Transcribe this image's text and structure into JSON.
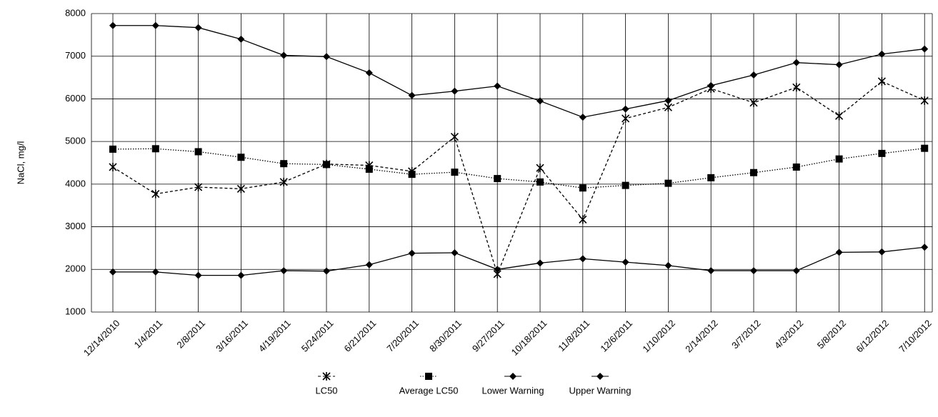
{
  "chart_data": {
    "type": "line",
    "y_label": "NaCl, mg/l",
    "categories": [
      "12/14/2010",
      "1/4/2011",
      "2/8/2011",
      "3/16/2011",
      "4/19/2011",
      "5/24/2011",
      "6/21/2011",
      "7/20/2011",
      "8/30/2011",
      "9/27/2011",
      "10/18/2011",
      "11/8/2011",
      "12/6/2011",
      "1/10/2012",
      "2/14/2012",
      "3/7/2012",
      "4/3/2012",
      "5/8/2012",
      "6/12/2012",
      "7/10/2012"
    ],
    "series": [
      {
        "name": "LC50",
        "color": "#000000",
        "marker": "x",
        "line_style": "dashed",
        "values": [
          4400,
          3770,
          3930,
          3890,
          4050,
          4470,
          4440,
          4300,
          5110,
          1890,
          4380,
          3170,
          5540,
          5800,
          6240,
          5910,
          6270,
          5600,
          6410,
          5960
        ]
      },
      {
        "name": "Average LC50",
        "color": "#000000",
        "marker": "square",
        "line_style": "dotted",
        "values": [
          4820,
          4830,
          4760,
          4630,
          4480,
          4460,
          4350,
          4230,
          4280,
          4130,
          4050,
          3910,
          3970,
          4020,
          4150,
          4270,
          4400,
          4590,
          4720,
          4840
        ]
      },
      {
        "name": "Lower Warning",
        "color": "#000000",
        "marker": "diamond",
        "line_style": "solid",
        "values": [
          1940,
          1940,
          1860,
          1860,
          1970,
          1960,
          2110,
          2380,
          2390,
          2000,
          2150,
          2250,
          2170,
          2090,
          1970,
          1970,
          1970,
          2400,
          2410,
          2520
        ]
      },
      {
        "name": "Upper Warning",
        "color": "#000000",
        "marker": "diamond",
        "line_style": "solid",
        "values": [
          7720,
          7720,
          7670,
          7400,
          7020,
          6990,
          6610,
          6080,
          6180,
          6300,
          5950,
          5570,
          5760,
          5960,
          6310,
          6560,
          6850,
          6800,
          7050,
          7170
        ]
      }
    ],
    "ylim": [
      1000,
      8000
    ],
    "yticks": [
      1000,
      2000,
      3000,
      4000,
      5000,
      6000,
      7000,
      8000
    ],
    "grid": true
  }
}
